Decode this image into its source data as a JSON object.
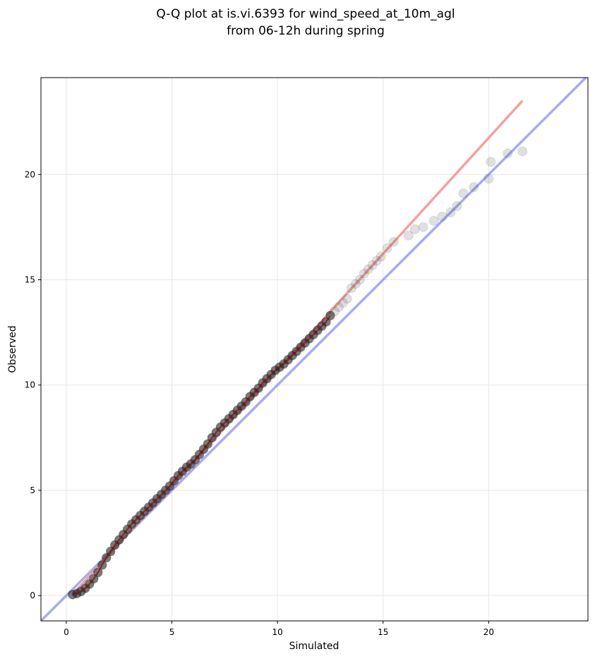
{
  "chart_data": {
    "type": "scatter",
    "title": "Q-Q plot at is.vi.6393 for wind_speed_at_10m_agl",
    "subtitle": "from 06-12h during spring",
    "xlabel": "Simulated",
    "ylabel": "Observed",
    "xlim": [
      -1.2,
      24.7
    ],
    "ylim": [
      -1.2,
      24.6
    ],
    "xticks": [
      0,
      5,
      10,
      15,
      20
    ],
    "yticks": [
      0,
      5,
      10,
      15,
      20
    ],
    "grid": true,
    "colors": {
      "points": "#555555",
      "fit_line": "#f08080",
      "identity_line": "#8c8cf0"
    },
    "fit_line": {
      "x": [
        0.3,
        21.6
      ],
      "y": [
        0.05,
        23.5
      ]
    },
    "identity_line": {
      "x": [
        -1.2,
        24.7
      ],
      "y": [
        -1.2,
        24.7
      ]
    },
    "quantiles": [
      [
        0.3,
        0.05
      ],
      [
        0.5,
        0.1
      ],
      [
        0.7,
        0.2
      ],
      [
        0.9,
        0.35
      ],
      [
        1.1,
        0.55
      ],
      [
        1.3,
        0.8
      ],
      [
        1.5,
        1.1
      ],
      [
        1.7,
        1.45
      ],
      [
        1.9,
        1.8
      ],
      [
        2.1,
        2.1
      ],
      [
        2.3,
        2.4
      ],
      [
        2.5,
        2.65
      ],
      [
        2.7,
        2.9
      ],
      [
        2.9,
        3.15
      ],
      [
        3.1,
        3.4
      ],
      [
        3.3,
        3.6
      ],
      [
        3.5,
        3.8
      ],
      [
        3.7,
        4.0
      ],
      [
        3.9,
        4.2
      ],
      [
        4.1,
        4.4
      ],
      [
        4.3,
        4.6
      ],
      [
        4.5,
        4.8
      ],
      [
        4.7,
        5.0
      ],
      [
        4.9,
        5.2
      ],
      [
        5.1,
        5.45
      ],
      [
        5.3,
        5.7
      ],
      [
        5.5,
        5.9
      ],
      [
        5.7,
        6.1
      ],
      [
        5.9,
        6.25
      ],
      [
        6.1,
        6.45
      ],
      [
        6.3,
        6.7
      ],
      [
        6.5,
        6.95
      ],
      [
        6.7,
        7.2
      ],
      [
        6.9,
        7.5
      ],
      [
        7.1,
        7.75
      ],
      [
        7.3,
        8.0
      ],
      [
        7.5,
        8.2
      ],
      [
        7.7,
        8.4
      ],
      [
        7.9,
        8.6
      ],
      [
        8.1,
        8.8
      ],
      [
        8.3,
        9.0
      ],
      [
        8.5,
        9.2
      ],
      [
        8.7,
        9.45
      ],
      [
        8.9,
        9.65
      ],
      [
        9.1,
        9.85
      ],
      [
        9.3,
        10.1
      ],
      [
        9.5,
        10.3
      ],
      [
        9.7,
        10.5
      ],
      [
        9.9,
        10.7
      ],
      [
        10.1,
        10.85
      ],
      [
        10.3,
        11.0
      ],
      [
        10.5,
        11.2
      ],
      [
        10.7,
        11.4
      ],
      [
        10.9,
        11.6
      ],
      [
        11.1,
        11.8
      ],
      [
        11.3,
        12.0
      ],
      [
        11.5,
        12.2
      ],
      [
        11.7,
        12.4
      ],
      [
        11.9,
        12.6
      ],
      [
        12.1,
        12.8
      ],
      [
        12.3,
        13.0
      ],
      [
        12.5,
        13.3
      ],
      [
        12.7,
        13.5
      ],
      [
        12.9,
        13.7
      ],
      [
        13.1,
        13.9
      ],
      [
        13.3,
        14.1
      ],
      [
        13.5,
        14.6
      ],
      [
        13.7,
        14.8
      ],
      [
        13.9,
        15.0
      ],
      [
        14.1,
        15.3
      ],
      [
        14.3,
        15.5
      ],
      [
        14.5,
        15.7
      ],
      [
        14.7,
        15.9
      ],
      [
        14.9,
        16.1
      ],
      [
        15.2,
        16.5
      ],
      [
        15.5,
        16.8
      ],
      [
        16.2,
        17.1
      ],
      [
        16.5,
        17.4
      ],
      [
        16.9,
        17.5
      ],
      [
        17.4,
        17.8
      ],
      [
        17.8,
        18.0
      ],
      [
        18.2,
        18.2
      ],
      [
        18.5,
        18.5
      ],
      [
        18.8,
        19.1
      ],
      [
        19.3,
        19.4
      ],
      [
        20.0,
        19.8
      ],
      [
        20.1,
        20.6
      ],
      [
        20.9,
        21.0
      ],
      [
        21.6,
        21.1
      ]
    ]
  }
}
